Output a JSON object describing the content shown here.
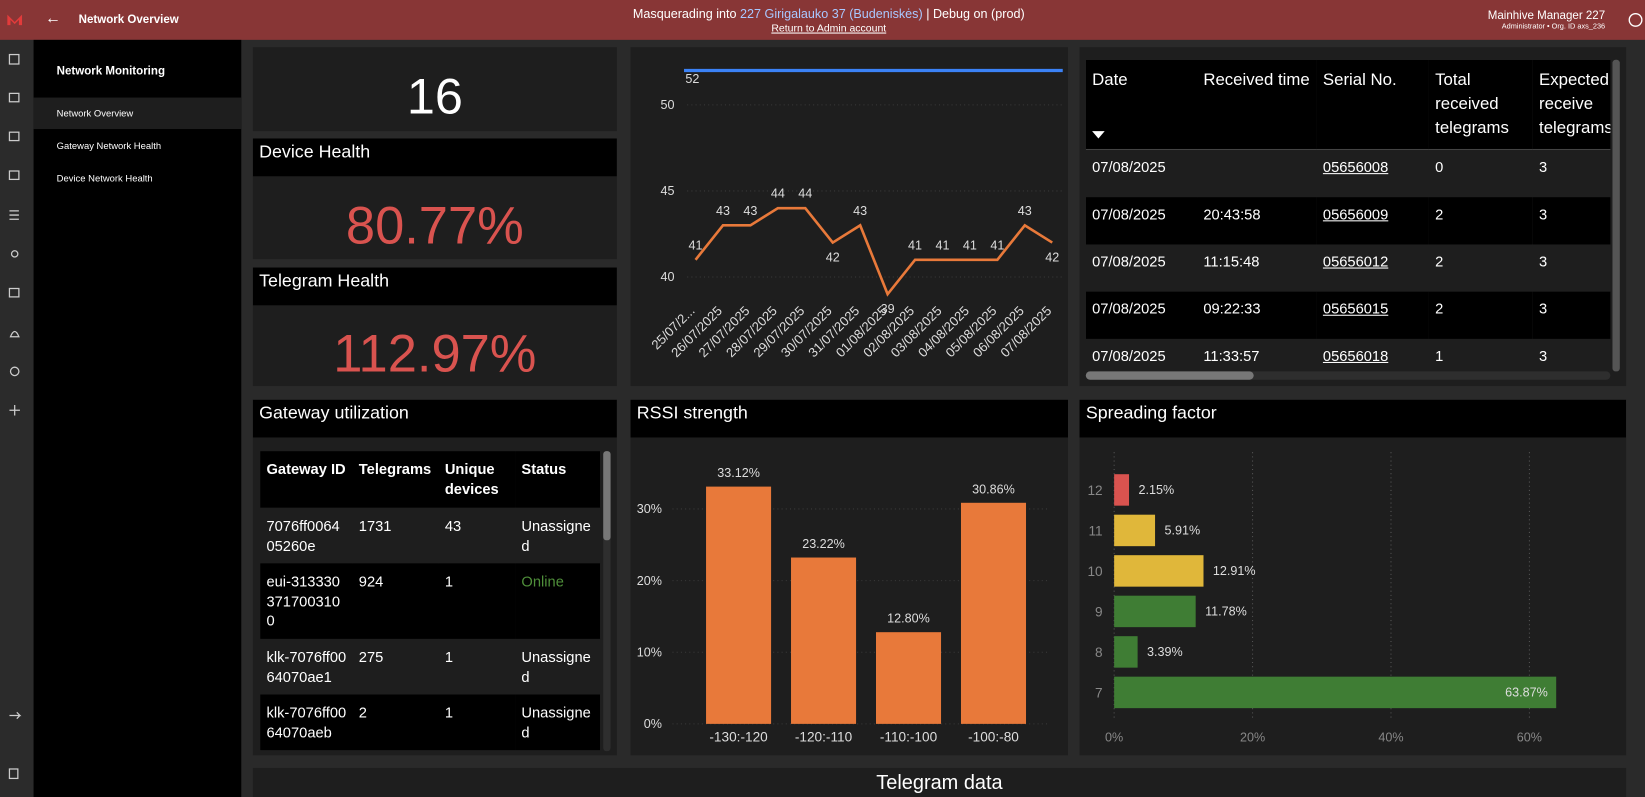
{
  "header": {
    "title": "Network Overview",
    "masquerade_prefix": "Masquerading into",
    "masquerade_target": "227 Girigalauko 37 (Budeniskės)",
    "masquerade_suffix": "| Debug on (prod)",
    "return_link": "Return to Admin account",
    "user_name": "Mainhive Manager 227",
    "user_role": "Administrator • Org. ID axs_236"
  },
  "sidebar": {
    "heading": "Network Monitoring",
    "items": [
      "Network Overview",
      "Gateway Network Health",
      "Device Network Health"
    ]
  },
  "kpis": [
    {
      "value": "16"
    },
    {
      "title": "Device Health",
      "value": "80.77%"
    },
    {
      "title": "Telegram Health",
      "value": "112.97%"
    }
  ],
  "serial_table": {
    "columns": [
      "Date",
      "Received time",
      "Serial No.",
      "Total received telegrams",
      "Expected to receive telegrams"
    ],
    "rows": [
      [
        "07/08/2025",
        null,
        "05656008",
        "0",
        "3"
      ],
      [
        "07/08/2025",
        "20:43:58",
        "05656009",
        "2",
        "3"
      ],
      [
        "07/08/2025",
        "11:15:48",
        "05656012",
        "2",
        "3"
      ],
      [
        "07/08/2025",
        "09:22:33",
        "05656015",
        "2",
        "3"
      ],
      [
        "07/08/2025",
        "11:33:57",
        "05656018",
        "1",
        "3"
      ]
    ]
  },
  "gateway_table": {
    "title": "Gateway utilization",
    "columns": [
      "Gateway ID",
      "Telegrams",
      "Unique devices",
      "Status"
    ],
    "rows": [
      [
        "7076ff006405260e",
        "1731",
        "43",
        "Unassigned"
      ],
      [
        "eui-3133303717003100",
        "924",
        "1",
        "Online"
      ],
      [
        "klk-7076ff0064070ae1",
        "275",
        "1",
        "Unassigned"
      ],
      [
        "klk-7076ff0064070aeb",
        "2",
        "1",
        "Unassigned"
      ]
    ],
    "status_colors": {
      "Online": "#4f8f3a"
    }
  },
  "chart_data": [
    {
      "type": "line",
      "categories": [
        "25/07/2...",
        "26/07/2025",
        "27/07/2025",
        "28/07/2025",
        "29/07/2025",
        "30/07/2025",
        "31/07/2025",
        "01/08/2025",
        "02/08/2025",
        "03/08/2025",
        "04/08/2025",
        "05/08/2025",
        "06/08/2025",
        "07/08/2025"
      ],
      "series": [
        {
          "color": "#e8793a",
          "values": [
            41,
            43,
            43,
            44,
            44,
            42,
            43,
            39,
            41,
            41,
            41,
            41,
            43,
            42
          ]
        }
      ],
      "reference_line": {
        "value": 52,
        "color": "#3b82f6"
      },
      "ylim": [
        38.5,
        52.5
      ],
      "yticks": [
        40,
        45,
        50
      ],
      "grid": true
    },
    {
      "type": "bar",
      "title": "RSSI strength",
      "categories": [
        "-130:-120",
        "-120:-110",
        "-110:-100",
        "-100:-80"
      ],
      "values": [
        33.12,
        23.22,
        12.8,
        30.86
      ],
      "value_labels": [
        "33.12%",
        "23.22%",
        "12.80%",
        "30.86%"
      ],
      "color": "#e8793a",
      "ylim": [
        0,
        38
      ],
      "yticks": [
        {
          "value": 0,
          "label": "0%"
        },
        {
          "value": 10,
          "label": "10%"
        },
        {
          "value": 20,
          "label": "20%"
        },
        {
          "value": 30,
          "label": "30%"
        }
      ],
      "grid": true
    },
    {
      "type": "hbar",
      "title": "Spreading factor",
      "categories": [
        "12",
        "11",
        "10",
        "9",
        "8",
        "7"
      ],
      "values": [
        2.15,
        5.91,
        12.91,
        11.78,
        3.39,
        63.87
      ],
      "value_labels": [
        "2.15%",
        "5.91%",
        "12.91%",
        "11.78%",
        "3.39%",
        "63.87%"
      ],
      "colors": [
        "#d9534f",
        "#e0b73a",
        "#e0b73a",
        "#3f7d34",
        "#3f7d34",
        "#3f7d34"
      ],
      "xlim": [
        0,
        72
      ],
      "xticks": [
        {
          "value": 0,
          "label": "0%"
        },
        {
          "value": 20,
          "label": "20%"
        },
        {
          "value": 40,
          "label": "40%"
        },
        {
          "value": 60,
          "label": "60%"
        }
      ],
      "grid": true
    }
  ],
  "footer_section": {
    "title": "Telegram data"
  }
}
